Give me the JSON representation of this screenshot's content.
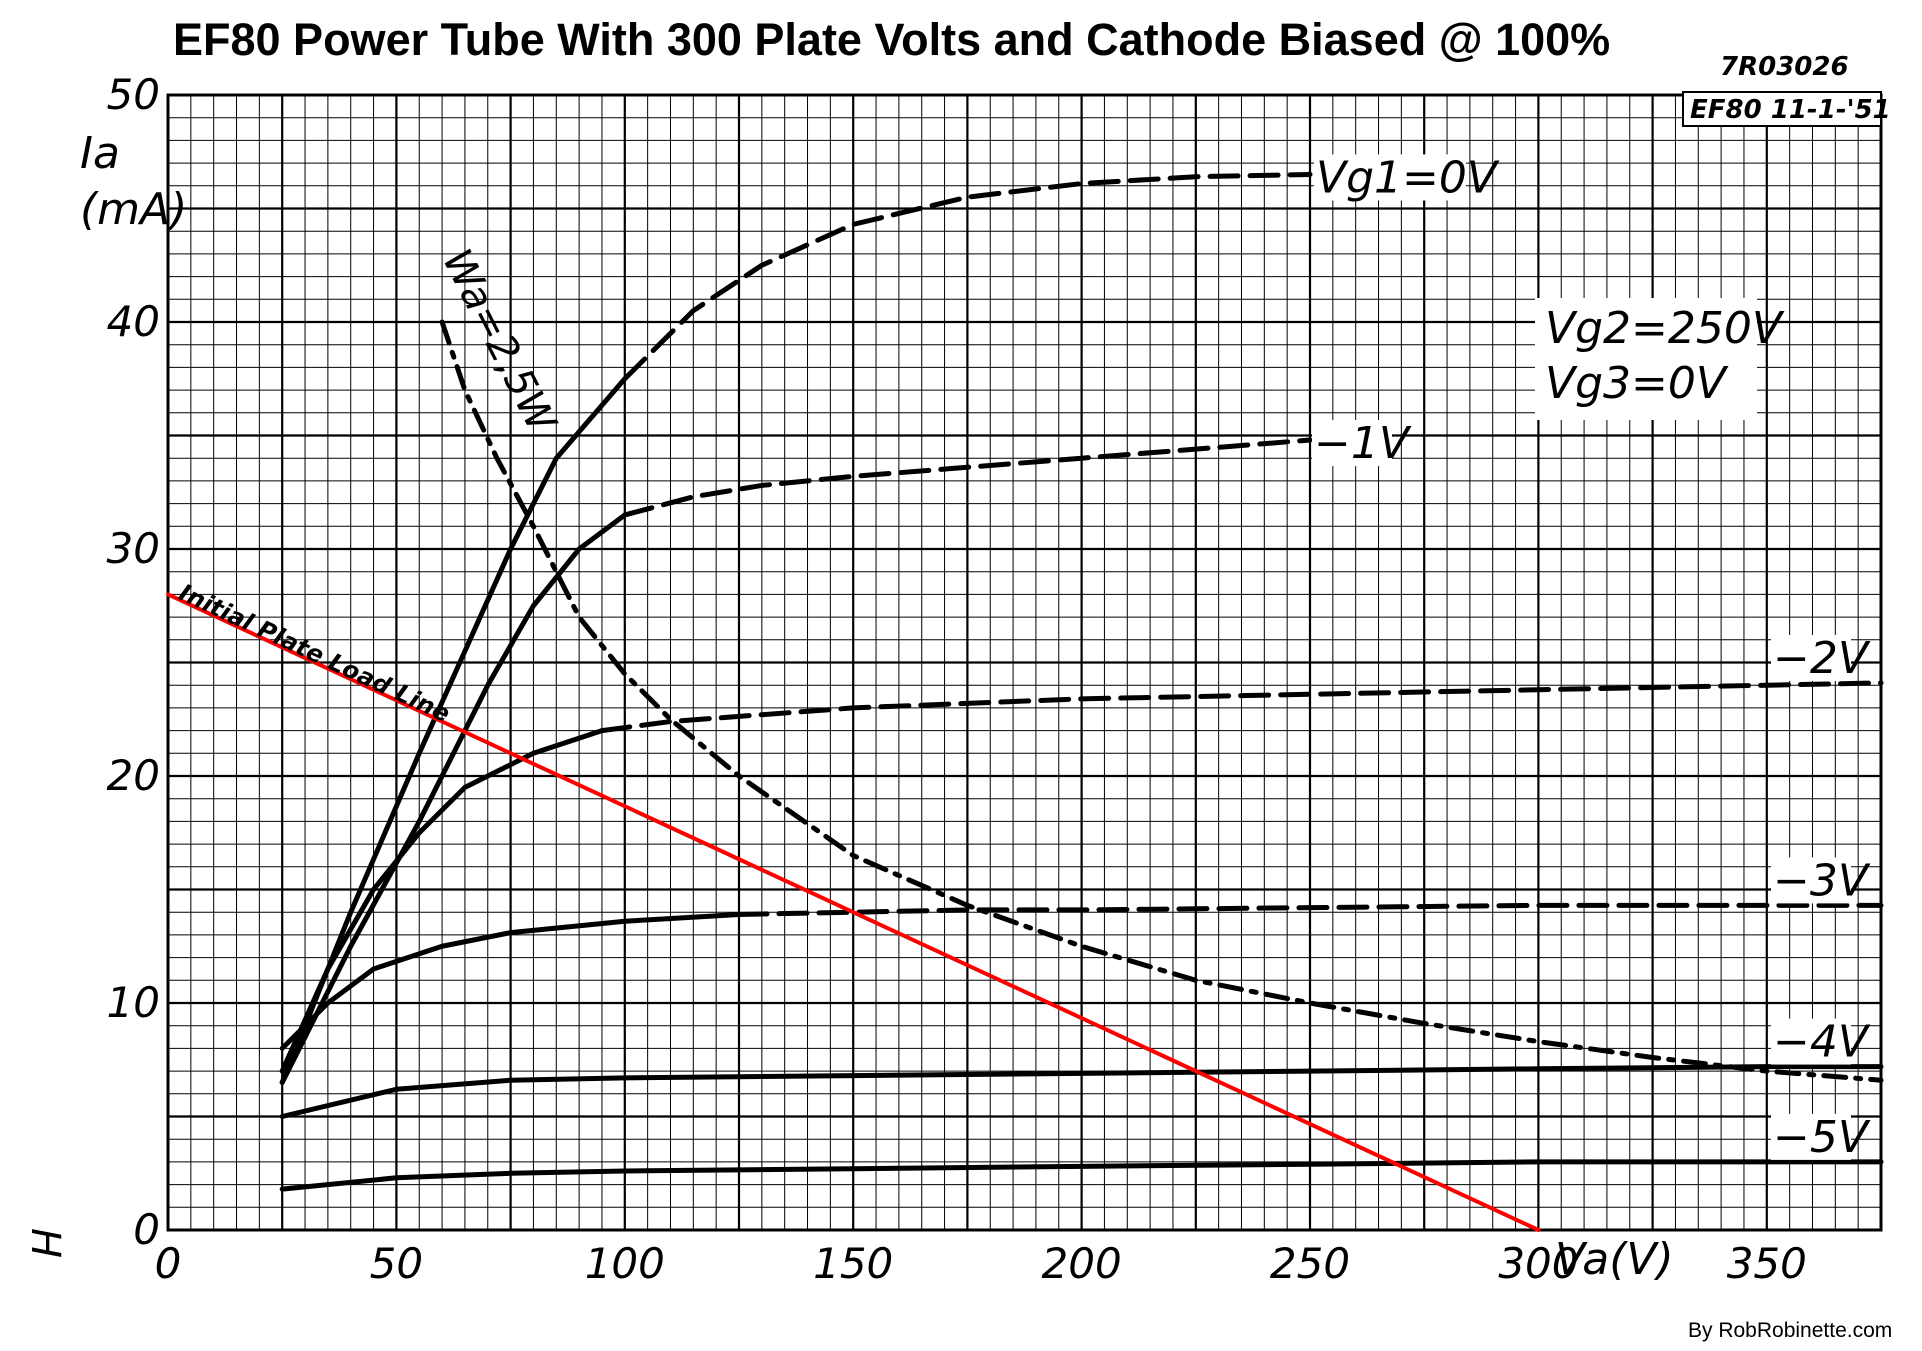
{
  "title": "EF80 Power Tube With 300 Plate Volts and Cathode Biased @ 100%",
  "doc_code": "7R03026",
  "doc_ref": "EF80 11-1-'51",
  "credit": "By RobRobinette.com",
  "side_mark": "H",
  "conditions": {
    "vg2": "Vg2=250V",
    "vg3": "Vg3=0V"
  },
  "chart_data": {
    "type": "line",
    "title": "EF80 Power Tube With 300 Plate Volts and Cathode Biased @ 100%",
    "xlabel": "Va(V)",
    "ylabel": "Ia (mA)",
    "xlim": [
      0,
      375
    ],
    "ylim": [
      0,
      50
    ],
    "x_ticks": [
      0,
      50,
      100,
      150,
      200,
      250,
      300,
      350
    ],
    "y_ticks": [
      0,
      10,
      20,
      30,
      40,
      50
    ],
    "grid": true,
    "series": [
      {
        "name": "Vg1=0V",
        "label": "Vg1=0V",
        "color": "#000000",
        "style": "solid-to-dashed",
        "points": [
          [
            25,
            6.5
          ],
          [
            40,
            14
          ],
          [
            55,
            21
          ],
          [
            65,
            25.5
          ],
          [
            75,
            30
          ],
          [
            85,
            34
          ],
          [
            100,
            37.5
          ],
          [
            115,
            40.5
          ],
          [
            130,
            42.5
          ],
          [
            150,
            44.3
          ],
          [
            175,
            45.5
          ],
          [
            200,
            46.1
          ],
          [
            225,
            46.4
          ],
          [
            250,
            46.5
          ]
        ]
      },
      {
        "name": "-1V",
        "label": "−1V",
        "color": "#000000",
        "style": "solid-to-dashed",
        "points": [
          [
            25,
            6.5
          ],
          [
            40,
            12.5
          ],
          [
            55,
            18
          ],
          [
            70,
            24
          ],
          [
            80,
            27.5
          ],
          [
            90,
            30
          ],
          [
            100,
            31.5
          ],
          [
            115,
            32.3
          ],
          [
            130,
            32.8
          ],
          [
            150,
            33.2
          ],
          [
            175,
            33.6
          ],
          [
            200,
            34
          ],
          [
            225,
            34.4
          ],
          [
            250,
            34.8
          ]
        ]
      },
      {
        "name": "-2V",
        "label": "−2V",
        "color": "#000000",
        "style": "solid-to-dashed",
        "points": [
          [
            25,
            7
          ],
          [
            35,
            11.5
          ],
          [
            45,
            15
          ],
          [
            55,
            17.5
          ],
          [
            65,
            19.5
          ],
          [
            80,
            21
          ],
          [
            95,
            22
          ],
          [
            110,
            22.4
          ],
          [
            130,
            22.7
          ],
          [
            150,
            23
          ],
          [
            200,
            23.4
          ],
          [
            250,
            23.6
          ],
          [
            300,
            23.8
          ],
          [
            350,
            24
          ],
          [
            375,
            24.1
          ]
        ]
      },
      {
        "name": "-3V",
        "label": "−3V",
        "color": "#000000",
        "style": "solid-to-dashed",
        "points": [
          [
            25,
            8
          ],
          [
            35,
            10
          ],
          [
            45,
            11.5
          ],
          [
            60,
            12.5
          ],
          [
            75,
            13.1
          ],
          [
            100,
            13.6
          ],
          [
            125,
            13.9
          ],
          [
            150,
            14
          ],
          [
            175,
            14.1
          ],
          [
            200,
            14.1
          ],
          [
            250,
            14.2
          ],
          [
            300,
            14.3
          ],
          [
            350,
            14.3
          ],
          [
            375,
            14.3
          ]
        ]
      },
      {
        "name": "-4V",
        "label": "−4V",
        "color": "#000000",
        "style": "solid",
        "points": [
          [
            25,
            5
          ],
          [
            50,
            6.2
          ],
          [
            75,
            6.6
          ],
          [
            100,
            6.7
          ],
          [
            150,
            6.8
          ],
          [
            200,
            6.9
          ],
          [
            250,
            7
          ],
          [
            300,
            7.1
          ],
          [
            350,
            7.2
          ],
          [
            375,
            7.2
          ]
        ]
      },
      {
        "name": "-5V",
        "label": "−5V",
        "color": "#000000",
        "style": "solid",
        "points": [
          [
            25,
            1.8
          ],
          [
            50,
            2.3
          ],
          [
            75,
            2.5
          ],
          [
            100,
            2.6
          ],
          [
            150,
            2.7
          ],
          [
            200,
            2.8
          ],
          [
            250,
            2.9
          ],
          [
            300,
            3
          ],
          [
            350,
            3
          ],
          [
            375,
            3
          ]
        ]
      },
      {
        "name": "Wa=2,5W",
        "label": "Wa=2,5W",
        "color": "#000000",
        "style": "dash-dot",
        "points": [
          [
            60,
            40
          ],
          [
            65,
            37
          ],
          [
            72,
            34
          ],
          [
            80,
            31
          ],
          [
            90,
            27
          ],
          [
            100,
            24.5
          ],
          [
            110,
            22.5
          ],
          [
            125,
            20
          ],
          [
            150,
            16.5
          ],
          [
            175,
            14.3
          ],
          [
            200,
            12.5
          ],
          [
            225,
            11
          ],
          [
            250,
            10
          ],
          [
            275,
            9.1
          ],
          [
            300,
            8.3
          ],
          [
            325,
            7.6
          ],
          [
            350,
            7
          ],
          [
            375,
            6.6
          ]
        ]
      },
      {
        "name": "Initial Plate Load Line",
        "label": "Initial Plate Load Line",
        "color": "#ff0000",
        "style": "solid",
        "points": [
          [
            0,
            28
          ],
          [
            300,
            0
          ]
        ]
      }
    ]
  }
}
